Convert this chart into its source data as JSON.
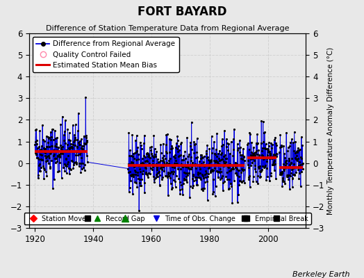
{
  "title": "FORT BAYARD",
  "subtitle": "Difference of Station Temperature Data from Regional Average",
  "ylabel_right": "Monthly Temperature Anomaly Difference (°C)",
  "credit": "Berkeley Earth",
  "xlim": [
    1918,
    2013
  ],
  "ylim": [
    -3,
    6
  ],
  "yticks": [
    -3,
    -2,
    -1,
    0,
    1,
    2,
    3,
    4,
    5,
    6
  ],
  "xticks": [
    1920,
    1940,
    1960,
    1980,
    2000
  ],
  "background_color": "#e8e8e8",
  "plot_background": "#e8e8e8",
  "segments": [
    {
      "start": 1920.0,
      "end": 1938.0,
      "bias": 0.55
    },
    {
      "start": 1952.0,
      "end": 1992.0,
      "bias": -0.1
    },
    {
      "start": 1993.0,
      "end": 2003.0,
      "bias": 0.25
    },
    {
      "start": 2004.0,
      "end": 2012.0,
      "bias": -0.2
    }
  ],
  "events": {
    "empirical_breaks": [
      1938,
      1992,
      2003
    ],
    "record_gaps": [
      1951
    ],
    "station_moves": [],
    "obs_changes": []
  },
  "event_y": -2.55,
  "seed": 42,
  "noise_std": 0.65,
  "data_color": "#0000dd",
  "bias_color": "#dd0000",
  "grid_color": "#cccccc",
  "legend_top": {
    "diff_label": "Difference from Regional Average",
    "qc_label": "Quality Control Failed",
    "bias_label": "Estimated Station Mean Bias"
  },
  "legend_bottom": {
    "station_move": "Station Move",
    "record_gap": "Record Gap",
    "obs_change": "Time of Obs. Change",
    "emp_break": "Empirical Break"
  }
}
